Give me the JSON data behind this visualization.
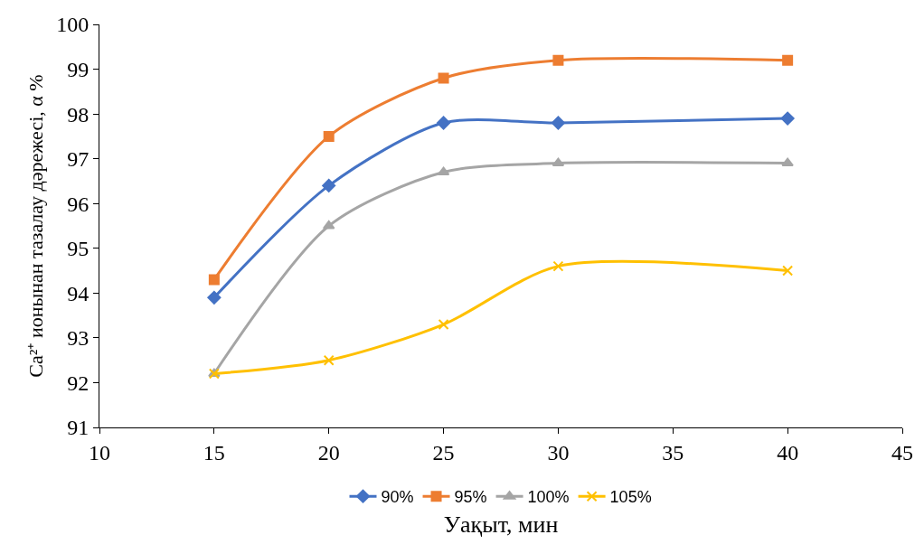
{
  "chart_data": {
    "type": "line",
    "xlabel": "Уақыт, мин",
    "ylabel": "Ca²⁺ ионынан тазалау дәрежесі, α %",
    "x": [
      15,
      20,
      25,
      30,
      40
    ],
    "xlim": [
      10,
      45
    ],
    "xticks": [
      10,
      15,
      20,
      25,
      30,
      35,
      40,
      45
    ],
    "ylim": [
      91,
      100
    ],
    "yticks": [
      91,
      92,
      93,
      94,
      95,
      96,
      97,
      98,
      99,
      100
    ],
    "legend": "bottom",
    "line_style": "solid",
    "series": [
      {
        "name": "90%",
        "color": "#4472c4",
        "marker": "diamond",
        "values": [
          93.9,
          96.4,
          97.8,
          97.8,
          97.9
        ]
      },
      {
        "name": "95%",
        "color": "#ed7d31",
        "marker": "square",
        "values": [
          94.3,
          97.5,
          98.8,
          99.2,
          99.2
        ]
      },
      {
        "name": "100%",
        "color": "#a5a5a5",
        "marker": "triangle",
        "values": [
          92.2,
          95.5,
          96.7,
          96.9,
          96.9
        ]
      },
      {
        "name": "105%",
        "color": "#ffc000",
        "marker": "cross",
        "values": [
          92.2,
          92.5,
          93.3,
          94.6,
          94.5
        ]
      }
    ]
  }
}
